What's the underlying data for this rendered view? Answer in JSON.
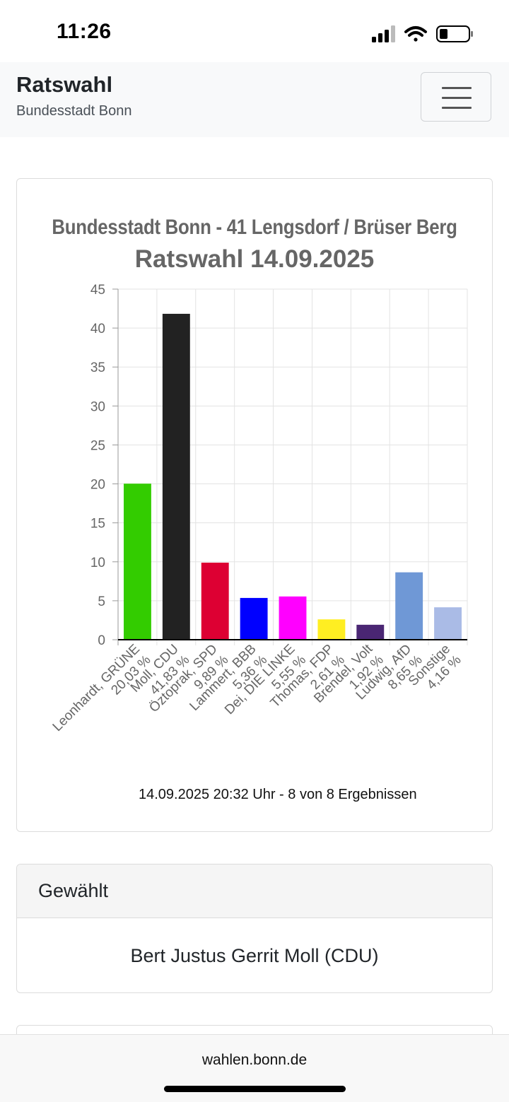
{
  "status_bar": {
    "time": "11:26"
  },
  "navbar": {
    "title": "Ratswahl",
    "subtitle": "Bundesstadt Bonn"
  },
  "chart_card": {
    "footer": "14.09.2025 20:32 Uhr - 8 von 8 Ergebnissen"
  },
  "chart_data": {
    "type": "bar",
    "title": "Bundesstadt Bonn - 41 Lengsdorf / Brüser Berg",
    "subtitle": "Ratswahl 14.09.2025",
    "categories": [
      [
        "Leonhardt, GRÜNE",
        "20,03 %"
      ],
      [
        "Moll, CDU",
        "41,83 %"
      ],
      [
        "Öztoprak, SPD",
        "9,89 %"
      ],
      [
        "Lammert, BBB",
        "5,36 %"
      ],
      [
        "Dei, DIE LINKE",
        "5,55 %"
      ],
      [
        "Thomas, FDP",
        "2,61 %"
      ],
      [
        "Brendel, Volt",
        "1,92 %"
      ],
      [
        "Ludwig, AfD",
        "8,65 %"
      ],
      [
        "Sonstige",
        "4,16 %"
      ]
    ],
    "values": [
      20.03,
      41.83,
      9.89,
      5.36,
      5.55,
      2.61,
      1.92,
      8.65,
      4.16
    ],
    "colors": [
      "#33cc00",
      "#222222",
      "#dd0033",
      "#0000ff",
      "#ff00ff",
      "#ffee22",
      "#4a2673",
      "#6f98d6",
      "#aabbe6"
    ],
    "ylim": [
      0,
      45
    ],
    "yticks": [
      0,
      5,
      10,
      15,
      20,
      25,
      30,
      35,
      40,
      45
    ],
    "grid": true,
    "legend": "none"
  },
  "elected": {
    "header": "Gewählt",
    "name": "Bert Justus Gerrit Moll (CDU)"
  },
  "browser": {
    "url": "wahlen.bonn.de"
  }
}
